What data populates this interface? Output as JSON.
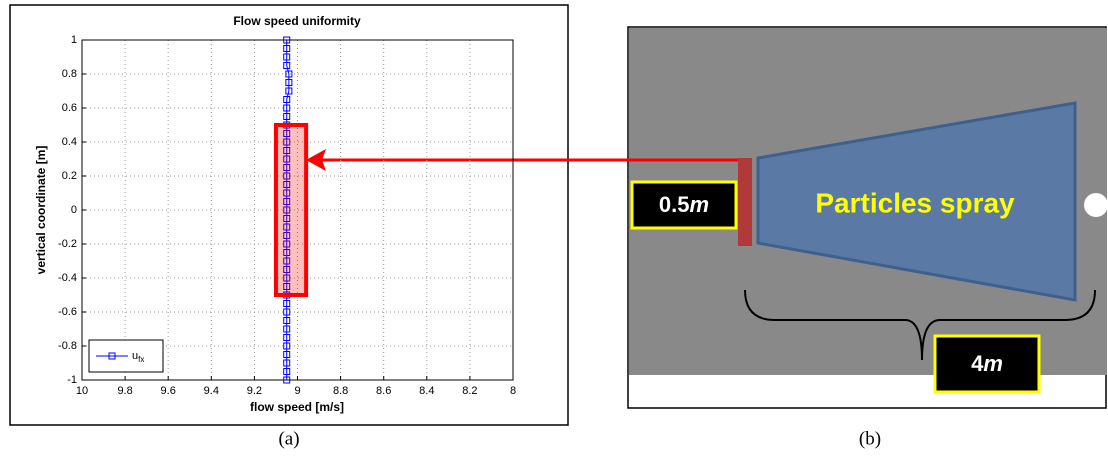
{
  "chart_data": {
    "type": "line",
    "title": "Flow speed uniformity",
    "x_label": "flow speed [m/s]",
    "y_label": "vertical coordinate [m]",
    "xlim": [
      10,
      8
    ],
    "xticks": [
      10,
      9.8,
      9.6,
      9.4,
      9.2,
      9,
      8.8,
      8.6,
      8.4,
      8.2,
      8
    ],
    "ylim": [
      -1,
      1
    ],
    "yticks": [
      -1,
      -0.8,
      -0.6,
      -0.4,
      -0.2,
      0,
      0.2,
      0.4,
      0.6,
      0.8,
      1
    ],
    "grid": true,
    "legend": "lower left",
    "series": [
      {
        "name": "u",
        "subscript": "fx",
        "color": "#0000ff",
        "x": [
          9.05,
          9.05,
          9.05,
          9.05,
          9.05,
          9.05,
          9.05,
          9.05,
          9.05,
          9.05,
          9.05,
          9.05,
          9.05,
          9.05,
          9.05,
          9.05,
          9.05,
          9.05,
          9.05,
          9.05,
          9.05,
          9.05,
          9.05,
          9.05,
          9.05,
          9.05,
          9.05,
          9.05,
          9.05,
          9.05,
          9.05,
          9.05,
          9.05,
          9.05,
          9.04,
          9.04,
          9.04,
          9.05,
          9.05,
          9.05,
          9.05
        ],
        "values": [
          -1,
          -0.95,
          -0.9,
          -0.85,
          -0.8,
          -0.75,
          -0.7,
          -0.65,
          -0.6,
          -0.55,
          -0.5,
          -0.45,
          -0.4,
          -0.35,
          -0.3,
          -0.25,
          -0.2,
          -0.15,
          -0.1,
          -0.05,
          0,
          0.05,
          0.1,
          0.15,
          0.2,
          0.25,
          0.3,
          0.35,
          0.4,
          0.45,
          0.5,
          0.55,
          0.6,
          0.65,
          0.7,
          0.75,
          0.8,
          0.85,
          0.9,
          0.95,
          1
        ]
      }
    ],
    "highlight": {
      "xlim": [
        9.1,
        8.96
      ],
      "ylim": [
        -0.5,
        0.5
      ],
      "color": "#ff0000"
    }
  },
  "diagram": {
    "spray_label": "Particles spray",
    "width_label": {
      "number": "0.5",
      "unit": "m"
    },
    "length_label": {
      "number": "4",
      "unit": "m"
    }
  },
  "captions": [
    "(a)",
    "(b)"
  ]
}
